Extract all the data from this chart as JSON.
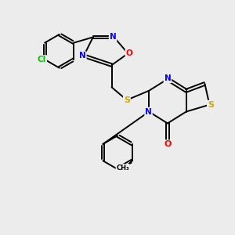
{
  "bg_color": "#ececec",
  "bond_color": "#000000",
  "bond_width": 1.4,
  "atom_colors": {
    "C": "#000000",
    "N": "#0000ff",
    "O": "#ff0000",
    "S": "#ccaa00",
    "Cl": "#00cc00"
  },
  "font_size": 7.5,
  "figsize": [
    3.0,
    3.0
  ],
  "dpi": 100,
  "xlim": [
    0,
    10
  ],
  "ylim": [
    0,
    10
  ]
}
